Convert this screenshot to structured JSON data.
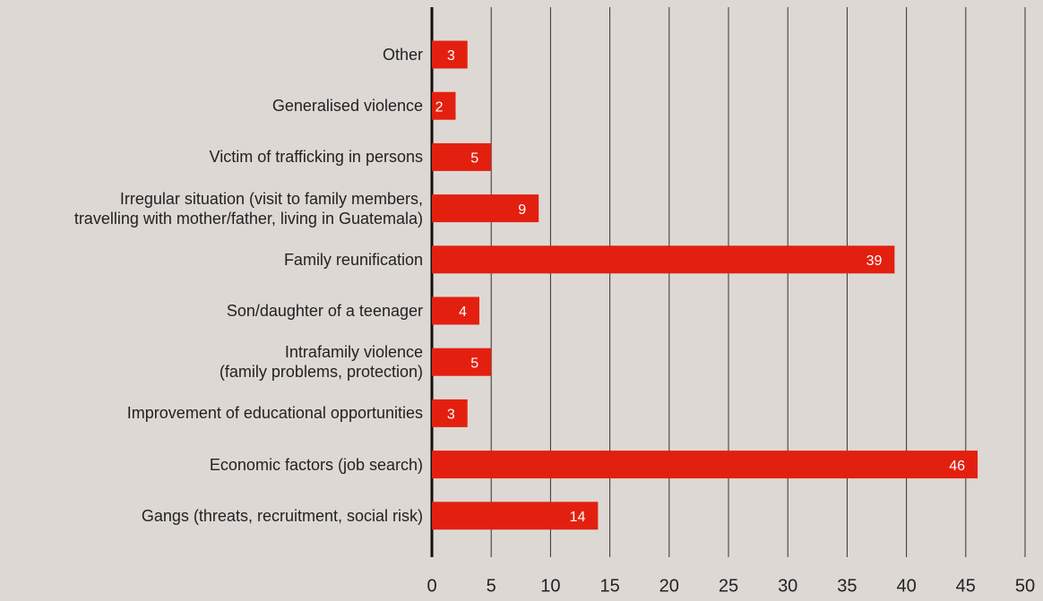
{
  "chart_data": {
    "type": "bar",
    "orientation": "horizontal",
    "categories": [
      "Other",
      "Generalised violence",
      "Victim of trafficking in persons",
      "Irregular situation (visit to family members,\ntravelling with mother/father, living in Guatemala)",
      "Family reunification",
      "Son/daughter of a teenager",
      "Intrafamily violence\n(family problems, protection)",
      "Improvement of educational opportunities",
      "Economic factors (job search)",
      "Gangs (threats, recruitment, social risk)"
    ],
    "values": [
      3,
      2,
      5,
      9,
      39,
      4,
      5,
      3,
      46,
      14
    ],
    "color": "#e3200f",
    "xlim": [
      0,
      50
    ],
    "xticks": [
      0,
      5,
      10,
      15,
      20,
      25,
      30,
      35,
      40,
      45,
      50
    ],
    "grid": true
  }
}
